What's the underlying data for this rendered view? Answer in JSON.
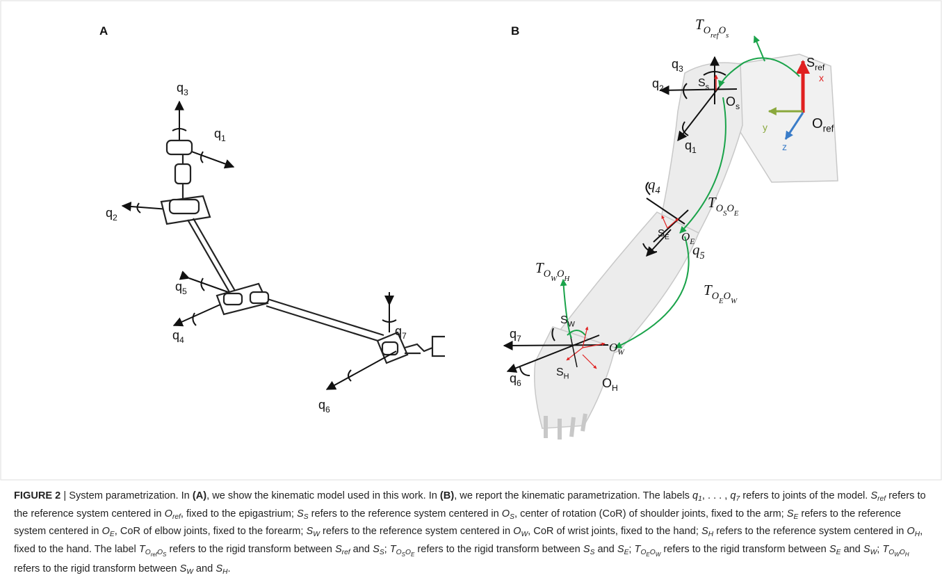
{
  "figure": {
    "panel_labels": [
      "A",
      "B"
    ],
    "panel_a": {
      "labels": [
        [
          [
            "q",
            0
          ],
          [
            "3",
            1
          ]
        ],
        [
          [
            "q",
            0
          ],
          [
            "1",
            1
          ]
        ],
        [
          [
            "q",
            0
          ],
          [
            "2",
            1
          ]
        ],
        [
          [
            "q",
            0
          ],
          [
            "5",
            1
          ]
        ],
        [
          [
            "q",
            0
          ],
          [
            "4",
            1
          ]
        ],
        [
          [
            "q",
            0
          ],
          [
            "7",
            1
          ]
        ],
        [
          [
            "q",
            0
          ],
          [
            "6",
            1
          ]
        ]
      ]
    },
    "panel_b": {
      "labels": [
        [
          [
            "T",
            0
          ],
          [
            "O",
            1
          ],
          [
            "ref",
            2
          ],
          [
            "O",
            1
          ],
          [
            "s",
            2
          ]
        ],
        [
          [
            "S",
            0
          ],
          [
            "ref",
            1
          ]
        ],
        [
          [
            "x",
            0
          ]
        ],
        [
          [
            "q",
            0
          ],
          [
            "3",
            1
          ]
        ],
        [
          [
            "S",
            0
          ],
          [
            "s",
            1
          ]
        ],
        [
          [
            "q",
            0
          ],
          [
            "2",
            1
          ]
        ],
        [
          [
            "O",
            0
          ],
          [
            "s",
            1
          ]
        ],
        [
          [
            "y",
            0
          ]
        ],
        [
          [
            "O",
            0
          ],
          [
            "ref",
            1
          ]
        ],
        [
          [
            "z",
            0
          ]
        ],
        [
          [
            "q",
            0
          ],
          [
            "1",
            1
          ]
        ],
        [
          [
            "T",
            0
          ],
          [
            "O",
            1
          ],
          [
            "S",
            2
          ],
          [
            "O",
            1
          ],
          [
            "E",
            2
          ]
        ],
        [
          [
            "q",
            0
          ],
          [
            "4",
            1
          ]
        ],
        [
          [
            "S",
            0
          ],
          [
            "E",
            1
          ]
        ],
        [
          [
            "O",
            0
          ],
          [
            "E",
            1
          ]
        ],
        [
          [
            "q",
            0
          ],
          [
            "5",
            1
          ]
        ],
        [
          [
            "T",
            0
          ],
          [
            "O",
            1
          ],
          [
            "W",
            2
          ],
          [
            "O",
            1
          ],
          [
            "H",
            2
          ]
        ],
        [
          [
            "T",
            0
          ],
          [
            "O",
            1
          ],
          [
            "E",
            2
          ],
          [
            "O",
            1
          ],
          [
            "W",
            2
          ]
        ],
        [
          [
            "S",
            0
          ],
          [
            "W",
            1
          ]
        ],
        [
          [
            "q",
            0
          ],
          [
            "7",
            1
          ]
        ],
        [
          [
            "O",
            0
          ],
          [
            "W",
            1
          ]
        ],
        [
          [
            "q",
            0
          ],
          [
            "6",
            1
          ]
        ],
        [
          [
            "S",
            0
          ],
          [
            "H",
            1
          ]
        ],
        [
          [
            "O",
            0
          ],
          [
            "H",
            1
          ]
        ]
      ]
    },
    "caption": [
      [
        "FIGURE 2",
        "b"
      ],
      " | System parametrization. In ",
      [
        "(A)",
        "b"
      ],
      ", we show the kinematic model used in this work. In ",
      [
        "(B)",
        "b"
      ],
      ", we report the kinematic parametrization. The labels ",
      [
        "q",
        "i0"
      ],
      [
        "1",
        "i1"
      ],
      ", . . . , ",
      [
        "q",
        "i0"
      ],
      [
        "7",
        "i1"
      ],
      " refers to joints of the model. ",
      [
        "S",
        "i0"
      ],
      [
        "ref",
        "i1"
      ],
      " refers to the reference system centered in ",
      [
        "O",
        "i0"
      ],
      [
        "ref",
        "i1"
      ],
      ", fixed to the epigastrium; ",
      [
        "S",
        "i0"
      ],
      [
        "S",
        "i1"
      ],
      " refers to the reference system centered in ",
      [
        "O",
        "i0"
      ],
      [
        "S",
        "i1"
      ],
      ", center of rotation (CoR) of shoulder joints, fixed to the arm; ",
      [
        "S",
        "i0"
      ],
      [
        "E",
        "i1"
      ],
      " refers to the reference system centered in ",
      [
        "O",
        "i0"
      ],
      [
        "E",
        "i1"
      ],
      ", CoR of elbow joints, fixed to the forearm; ",
      [
        "S",
        "i0"
      ],
      [
        "W",
        "i1"
      ],
      " refers to the reference system centered in ",
      [
        "O",
        "i0"
      ],
      [
        "W",
        "i1"
      ],
      ", CoR of wrist joints, fixed to the hand; ",
      [
        "S",
        "i0"
      ],
      [
        "H",
        "i1"
      ],
      " refers to the reference system centered in ",
      [
        "O",
        "i0"
      ],
      [
        "H",
        "i1"
      ],
      ", fixed to the hand. The label ",
      [
        "T",
        "i0"
      ],
      [
        "O",
        "i1"
      ],
      [
        "ref",
        "i2"
      ],
      [
        "O",
        "i1"
      ],
      [
        "S",
        "i2"
      ],
      " refers to the rigid transform between ",
      [
        "S",
        "i0"
      ],
      [
        "ref",
        "i1"
      ],
      " and ",
      [
        "S",
        "i0"
      ],
      [
        "S",
        "i1"
      ],
      "; ",
      [
        "T",
        "i0"
      ],
      [
        "O",
        "i1"
      ],
      [
        "S",
        "i2"
      ],
      [
        "O",
        "i1"
      ],
      [
        "E",
        "i2"
      ],
      " refers to the rigid transform between ",
      [
        "S",
        "i0"
      ],
      [
        "S",
        "i1"
      ],
      " and ",
      [
        "S",
        "i0"
      ],
      [
        "E",
        "i1"
      ],
      "; ",
      [
        "T",
        "i0"
      ],
      [
        "O",
        "i1"
      ],
      [
        "E",
        "i2"
      ],
      [
        "O",
        "i1"
      ],
      [
        "W",
        "i2"
      ],
      " refers to the rigid transform between ",
      [
        "S",
        "i0"
      ],
      [
        "E",
        "i1"
      ],
      " and ",
      [
        "S",
        "i0"
      ],
      [
        "W",
        "i1"
      ],
      "; ",
      [
        "T",
        "i0"
      ],
      [
        "O",
        "i1"
      ],
      [
        "W",
        "i2"
      ],
      [
        "O",
        "i1"
      ],
      [
        "H",
        "i2"
      ],
      " refers to the rigid transform between ",
      [
        "S",
        "i0"
      ],
      [
        "W",
        "i1"
      ],
      " and ",
      [
        "S",
        "i0"
      ],
      [
        "H",
        "i1"
      ],
      "."
    ]
  }
}
